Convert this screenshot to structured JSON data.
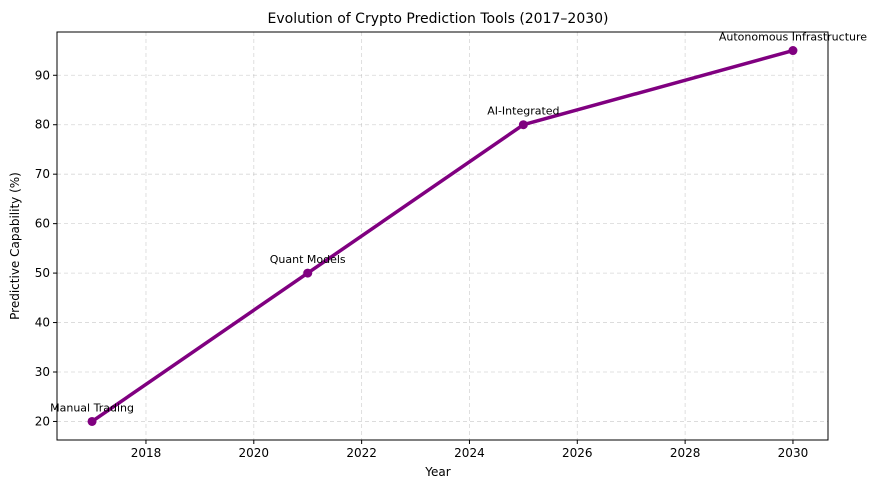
{
  "chart_data": {
    "type": "line",
    "title": "Evolution of Crypto Prediction Tools (2017–2030)",
    "xlabel": "Year",
    "ylabel": "Predictive Capability (%)",
    "x": [
      2017,
      2021,
      2025,
      2030
    ],
    "series": [
      {
        "values": [
          20,
          50,
          80,
          95
        ],
        "color": "#800080",
        "marker": "circle"
      }
    ],
    "annotations": [
      "Manual Trading",
      "Quant Models",
      "AI-Integrated",
      "Autonomous Infrastructure"
    ],
    "xlim": [
      2016.35,
      2030.65
    ],
    "ylim": [
      16.25,
      98.75
    ],
    "xticks": [
      2018,
      2020,
      2022,
      2024,
      2026,
      2028,
      2030
    ],
    "yticks": [
      20,
      30,
      40,
      50,
      60,
      70,
      80,
      90
    ],
    "grid": true,
    "legend": "none"
  }
}
